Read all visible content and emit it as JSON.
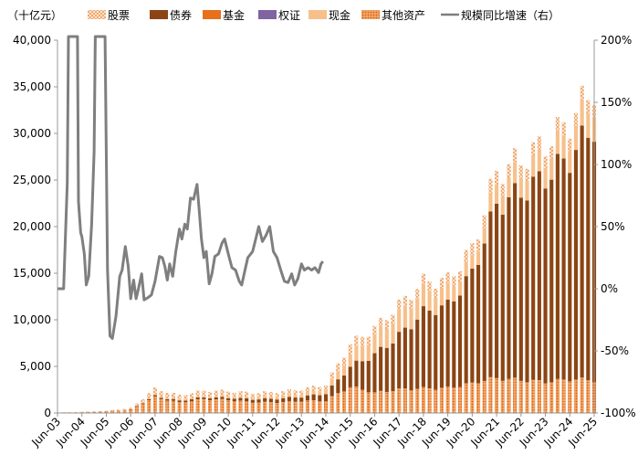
{
  "chart_data": {
    "type": "bar",
    "unit_label": "（十亿元）",
    "legend": [
      {
        "key": "stock",
        "label": "股票",
        "color": "#f0b07a",
        "pattern": "dots-light"
      },
      {
        "key": "bond",
        "label": "债券",
        "color": "#8b4513",
        "pattern": "solid"
      },
      {
        "key": "fund",
        "label": "基金",
        "color": "#e8701a",
        "pattern": "solid"
      },
      {
        "key": "warrant",
        "label": "权证",
        "color": "#8064a2",
        "pattern": "solid"
      },
      {
        "key": "cash",
        "label": "现金",
        "color": "#f7c08a",
        "pattern": "solid"
      },
      {
        "key": "other",
        "label": "其他资产",
        "color": "#e87a2a",
        "pattern": "dots-dense"
      },
      {
        "key": "growth",
        "label": "规模同比增速（右）",
        "color": "#7f7f7f",
        "pattern": "line"
      }
    ],
    "x_tick_labels": [
      "Jun-03",
      "Jun-04",
      "Jun-05",
      "Jun-06",
      "Jun-07",
      "Jun-08",
      "Jun-09",
      "Jun-10",
      "Jun-11",
      "Jun-12",
      "Jun-13",
      "Jun-14",
      "Jun-15",
      "Jun-16",
      "Jun-17",
      "Jun-18",
      "Jun-19",
      "Jun-20",
      "Jun-21",
      "Jun-22",
      "Jun-23",
      "Jun-24",
      "Jun-25"
    ],
    "y_left": {
      "min": 0,
      "max": 40000,
      "ticks": [
        0,
        5000,
        10000,
        15000,
        20000,
        25000,
        30000,
        35000,
        40000
      ],
      "tick_labels": [
        "0",
        "5,000",
        "10,000",
        "15,000",
        "20,000",
        "25,000",
        "30,000",
        "35,000",
        "40,000"
      ]
    },
    "y_right": {
      "min": -100,
      "max": 200,
      "ticks": [
        -100,
        -50,
        0,
        50,
        100,
        150,
        200
      ],
      "tick_labels": [
        "-100%",
        "-50%",
        "0%",
        "50%",
        "100%",
        "150%",
        "200%"
      ]
    },
    "x_anchor_totals": [
      60,
      120,
      240,
      520,
      2600,
      1900,
      2400,
      2350,
      2150,
      2250,
      2550,
      3050,
      7400,
      9100,
      11600,
      14100,
      14300,
      17600,
      25800,
      27200,
      28900,
      31300,
      35000
    ],
    "x_anchor_bond_share": [
      0.15,
      0.1,
      0.1,
      0.08,
      0.05,
      0.1,
      0.08,
      0.1,
      0.15,
      0.18,
      0.18,
      0.25,
      0.3,
      0.45,
      0.5,
      0.58,
      0.62,
      0.67,
      0.72,
      0.74,
      0.76,
      0.76,
      0.78
    ],
    "x_anchor_cash_share": [
      0.02,
      0.03,
      0.03,
      0.03,
      0.05,
      0.08,
      0.06,
      0.07,
      0.1,
      0.12,
      0.12,
      0.15,
      0.18,
      0.22,
      0.2,
      0.16,
      0.12,
      0.08,
      0.08,
      0.08,
      0.08,
      0.08,
      0.08
    ],
    "growth_line": [
      [
        0.0,
        0
      ],
      [
        0.25,
        0
      ],
      [
        0.4,
        85
      ],
      [
        0.45,
        220
      ],
      [
        0.82,
        220
      ],
      [
        0.86,
        70
      ],
      [
        0.95,
        45
      ],
      [
        1.0,
        42
      ],
      [
        1.1,
        28
      ],
      [
        1.18,
        3
      ],
      [
        1.28,
        10
      ],
      [
        1.4,
        52
      ],
      [
        1.5,
        110
      ],
      [
        1.55,
        220
      ],
      [
        1.95,
        220
      ],
      [
        2.05,
        15
      ],
      [
        2.15,
        -38
      ],
      [
        2.25,
        -40
      ],
      [
        2.4,
        -22
      ],
      [
        2.55,
        10
      ],
      [
        2.65,
        15
      ],
      [
        2.78,
        34
      ],
      [
        2.9,
        18
      ],
      [
        3.0,
        -8
      ],
      [
        3.12,
        7
      ],
      [
        3.22,
        -8
      ],
      [
        3.32,
        0
      ],
      [
        3.45,
        12
      ],
      [
        3.55,
        -9
      ],
      [
        3.72,
        -7
      ],
      [
        3.85,
        -5
      ],
      [
        4.0,
        6
      ],
      [
        4.18,
        26
      ],
      [
        4.3,
        25
      ],
      [
        4.4,
        18
      ],
      [
        4.5,
        7
      ],
      [
        4.6,
        20
      ],
      [
        4.72,
        10
      ],
      [
        4.85,
        30
      ],
      [
        5.0,
        48
      ],
      [
        5.1,
        40
      ],
      [
        5.22,
        52
      ],
      [
        5.32,
        48
      ],
      [
        5.45,
        73
      ],
      [
        5.58,
        72
      ],
      [
        5.72,
        84
      ],
      [
        5.82,
        60
      ],
      [
        5.9,
        40
      ],
      [
        6.0,
        25
      ],
      [
        6.1,
        30
      ],
      [
        6.22,
        4
      ],
      [
        6.33,
        12
      ],
      [
        6.45,
        26
      ],
      [
        6.6,
        28
      ],
      [
        6.75,
        37
      ],
      [
        6.85,
        40
      ],
      [
        7.0,
        28
      ],
      [
        7.15,
        17
      ],
      [
        7.3,
        15
      ],
      [
        7.45,
        6
      ],
      [
        7.55,
        3
      ],
      [
        7.65,
        12
      ],
      [
        7.8,
        25
      ],
      [
        8.0,
        30
      ],
      [
        8.1,
        38
      ],
      [
        8.25,
        50
      ],
      [
        8.4,
        38
      ],
      [
        8.55,
        43
      ],
      [
        8.7,
        50
      ],
      [
        8.85,
        30
      ],
      [
        9.0,
        25
      ],
      [
        9.15,
        15
      ],
      [
        9.3,
        6
      ],
      [
        9.45,
        5
      ],
      [
        9.6,
        12
      ],
      [
        9.72,
        3
      ],
      [
        9.85,
        8
      ],
      [
        10.0,
        20
      ],
      [
        10.12,
        15
      ],
      [
        10.27,
        17
      ],
      [
        10.42,
        15
      ],
      [
        10.55,
        17
      ],
      [
        10.7,
        13
      ],
      [
        10.8,
        20
      ],
      [
        10.88,
        22
      ]
    ]
  }
}
